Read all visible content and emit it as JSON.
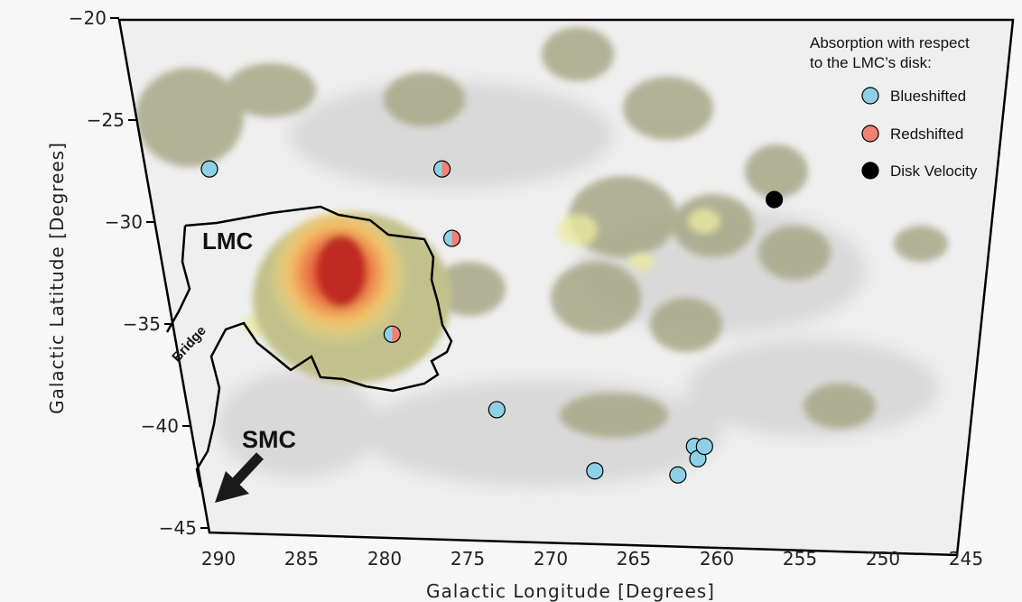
{
  "chart_data": {
    "type": "scatter",
    "title": "",
    "xlabel": "Galactic Longitude [Degrees]",
    "ylabel": "Galactic Latitude [Degrees]",
    "xlim": [
      290,
      245
    ],
    "ylim": [
      -45,
      -20
    ],
    "x_ticks": [
      "290",
      "285",
      "280",
      "275",
      "270",
      "265",
      "260",
      "255",
      "250",
      "245"
    ],
    "y_ticks": [
      "−20",
      "−25",
      "−30",
      "−35",
      "−40",
      "−45"
    ],
    "legend": {
      "placement": "top-right",
      "title_line1": "Absorption with respect",
      "title_line2": "to the LMC’s disk:",
      "entries": [
        {
          "label": "Blueshifted",
          "color": "#8ed1e6"
        },
        {
          "label": "Redshifted",
          "color": "#f28074"
        },
        {
          "label": "Disk Velocity",
          "color": "#000000"
        }
      ]
    },
    "labels": {
      "lmc": "LMC",
      "smc": "SMC",
      "bridge": "Bridge"
    },
    "series": [
      {
        "category": "blue",
        "color": "#8ed1e6",
        "points": [
          [
            290.0,
            -27.4
          ],
          [
            272.7,
            -39.2
          ],
          [
            266.8,
            -42.2
          ],
          [
            261.8,
            -42.4
          ],
          [
            260.8,
            -41.0
          ],
          [
            260.6,
            -41.6
          ],
          [
            260.2,
            -41.0
          ]
        ]
      },
      {
        "category": "red",
        "color": "#f28074",
        "points": []
      },
      {
        "category": "split",
        "color": "#8ed1e6",
        "color2": "#f28074",
        "points": [
          [
            276.0,
            -27.4
          ],
          [
            275.4,
            -30.8
          ],
          [
            279.0,
            -35.5
          ]
        ]
      },
      {
        "category": "disk",
        "color": "#000000",
        "points": [
          [
            256.0,
            -28.9
          ]
        ]
      }
    ]
  }
}
